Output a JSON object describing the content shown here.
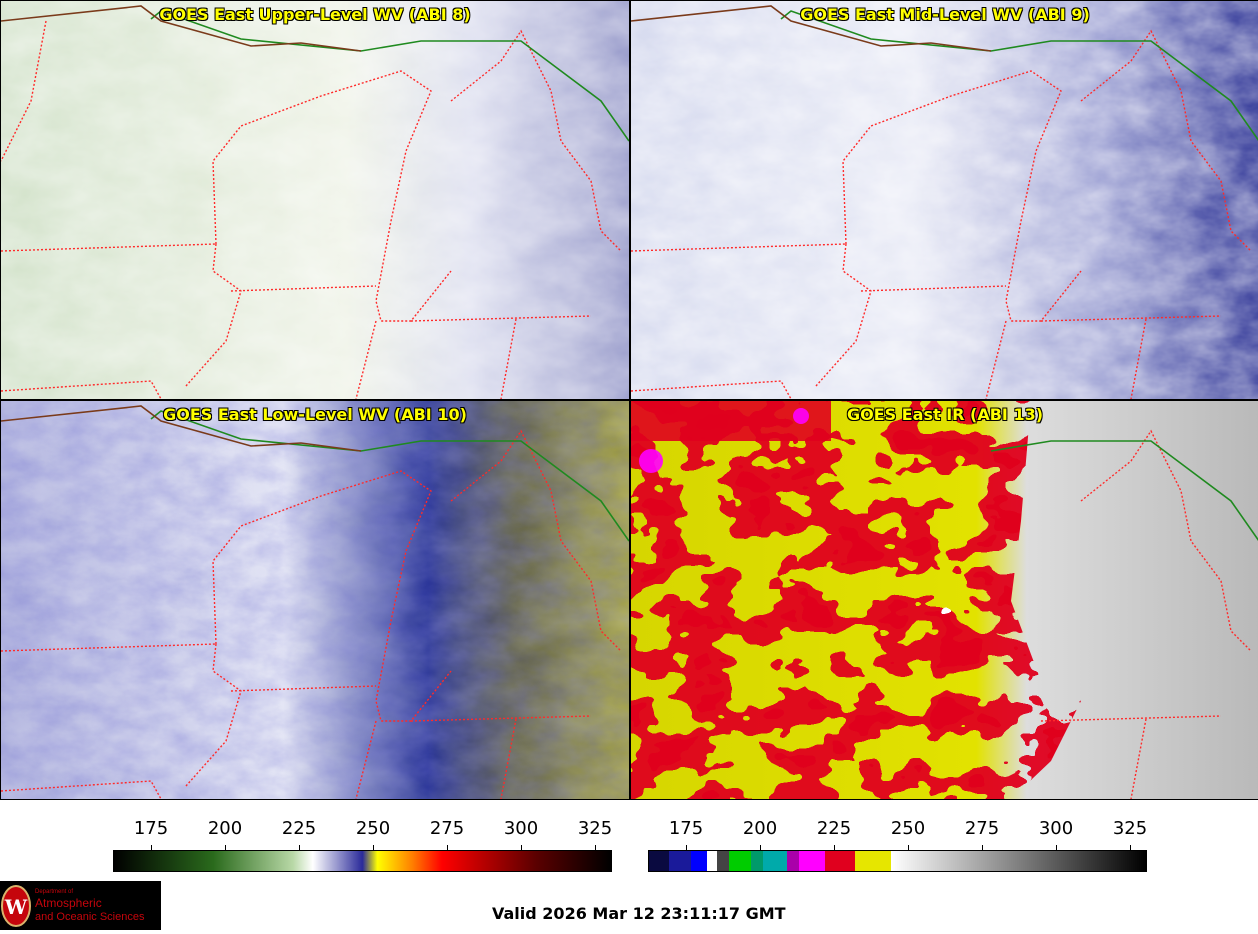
{
  "panels": [
    {
      "title": "GOES East Upper-Level WV (ABI 8)"
    },
    {
      "title": "GOES East Mid-Level WV (ABI 9)"
    },
    {
      "title": "GOES East Low-Level WV (ABI 10)"
    },
    {
      "title": "GOES East IR (ABI 13)"
    }
  ],
  "colorbars": [
    {
      "ticks": [
        "175",
        "200",
        "225",
        "250",
        "275",
        "300",
        "325"
      ]
    },
    {
      "ticks": [
        "175",
        "200",
        "225",
        "250",
        "275",
        "300",
        "325"
      ]
    }
  ],
  "logo": {
    "line1": "Department of",
    "line2": "Atmospheric",
    "line3": "and Oceanic Sciences",
    "seal": "W"
  },
  "valid_time": "Valid 2026 Mar 12 23:11:17 GMT",
  "colors": {
    "title_text": "#ffff00",
    "borders_state": "#ff2a2a",
    "borders_intl": "#1f8a1f",
    "coast": "#7a3a1a"
  }
}
